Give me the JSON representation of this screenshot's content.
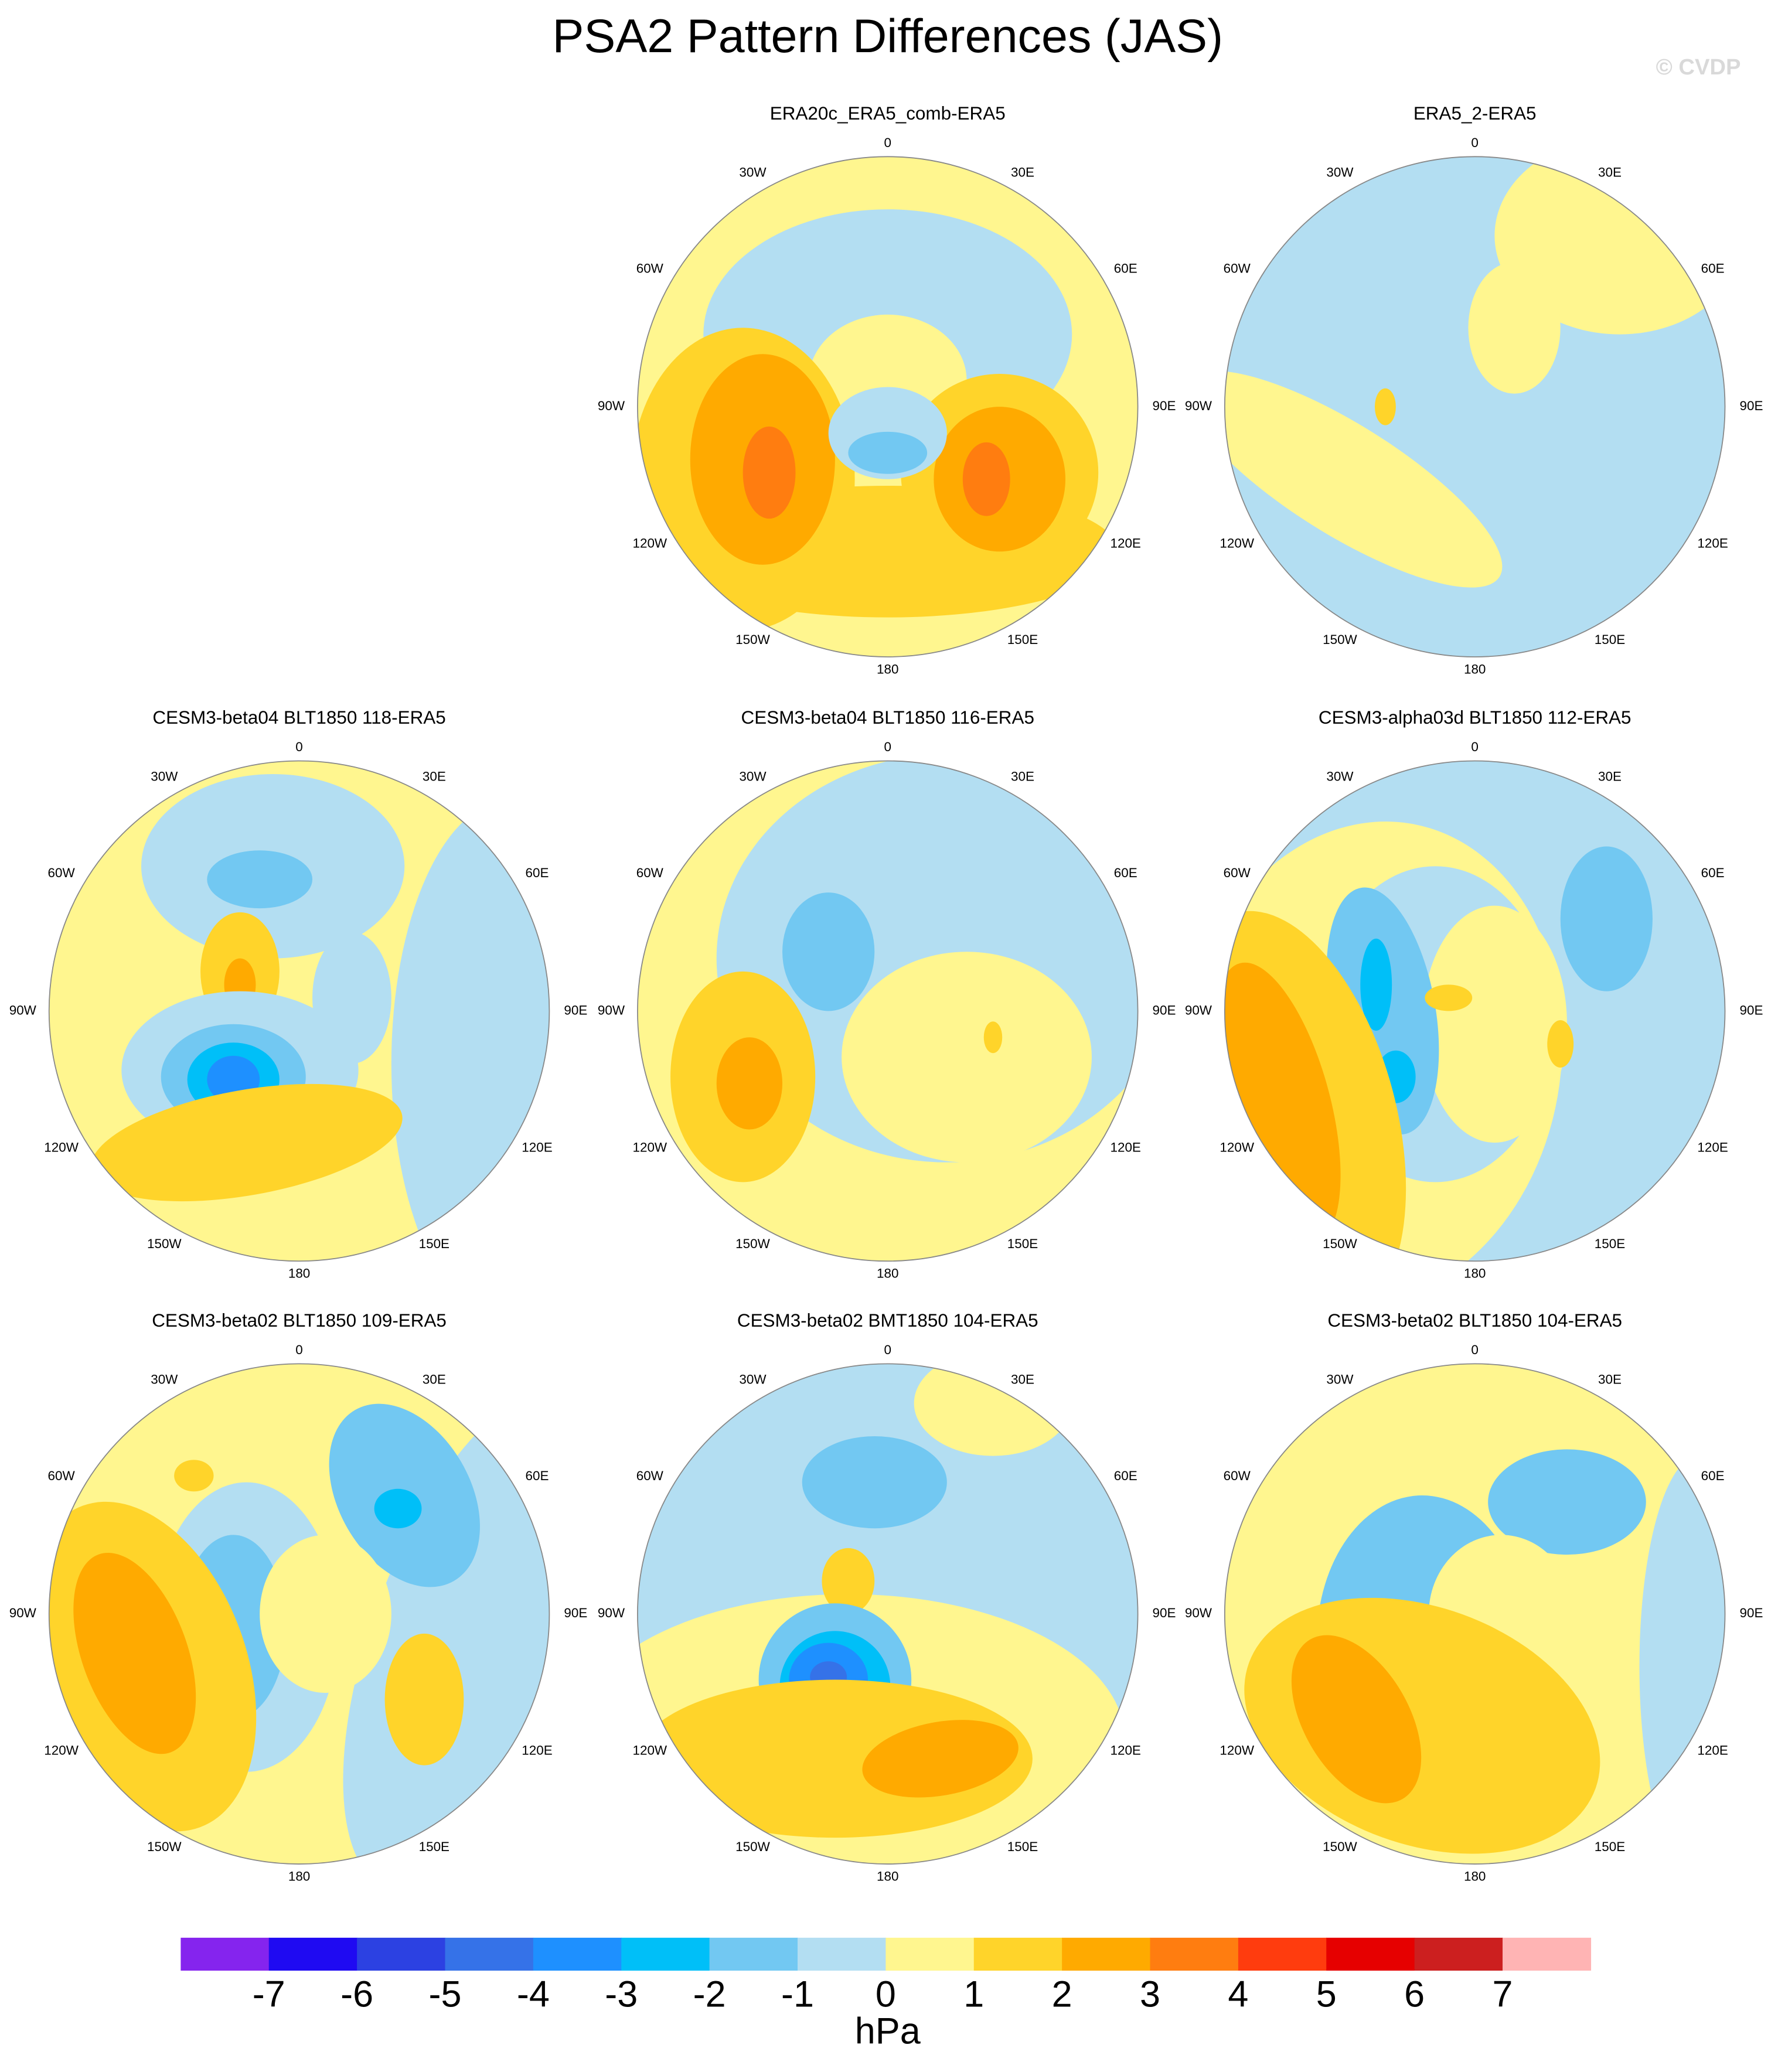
{
  "title": "PSA2 Pattern Differences (JAS)",
  "watermark": "© CVDP",
  "lon_labels": [
    "0",
    "30E",
    "60E",
    "90E",
    "120E",
    "150E",
    "180",
    "150W",
    "120W",
    "90W",
    "60W",
    "30W"
  ],
  "panels": [
    {
      "title": "ERA20c_ERA5_comb-ERA5"
    },
    {
      "title": "ERA5_2-ERA5"
    },
    {
      "title": "CESM3-beta04 BLT1850 118-ERA5"
    },
    {
      "title": "CESM3-beta04 BLT1850 116-ERA5"
    },
    {
      "title": "CESM3-alpha03d BLT1850 112-ERA5"
    },
    {
      "title": "CESM3-beta02 BLT1850 109-ERA5"
    },
    {
      "title": "CESM3-beta02 BMT1850 104-ERA5"
    },
    {
      "title": "CESM3-beta02 BLT1850 104-ERA5"
    }
  ],
  "colorbar": {
    "levels": [
      -7,
      -6,
      -5,
      -4,
      -3,
      -2,
      -1,
      0,
      1,
      2,
      3,
      4,
      5,
      6,
      7
    ],
    "colors": [
      "#8524ee",
      "#1f0af2",
      "#2c41e2",
      "#3572e8",
      "#1e90ff",
      "#00bff8",
      "#72c8f2",
      "#b3def2",
      "#fff68f",
      "#ffd42a",
      "#ffaa00",
      "#ff7d10",
      "#ff3c0e",
      "#e60000",
      "#cc1f1f",
      "#ffb4b4"
    ],
    "unit": "hPa"
  }
}
